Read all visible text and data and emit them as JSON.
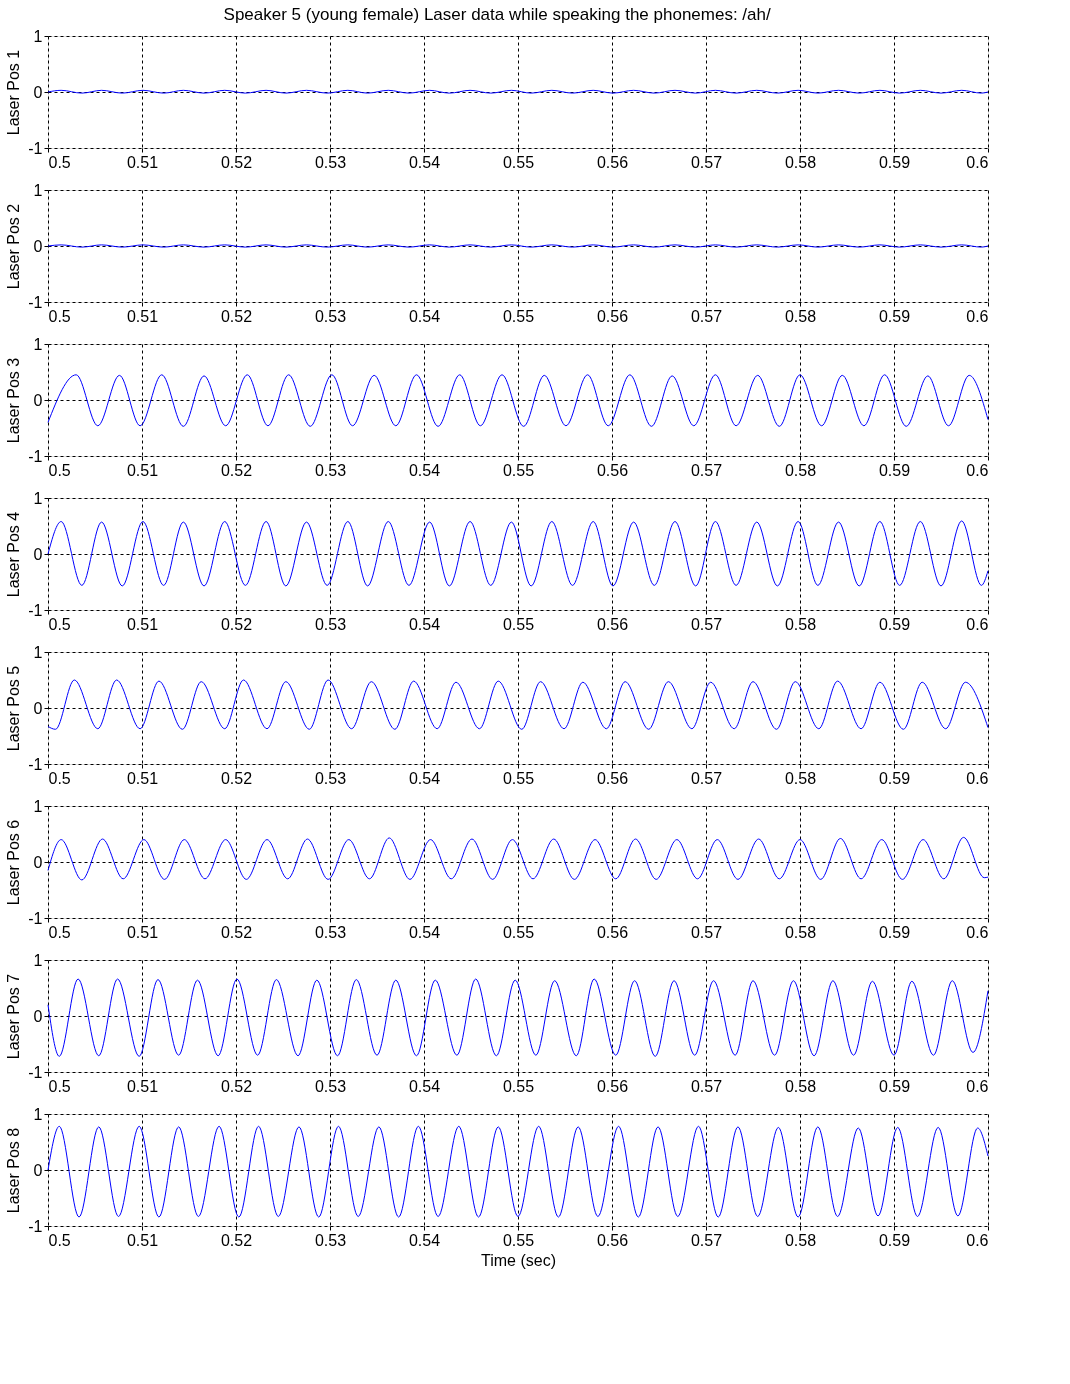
{
  "chart_data": [
    {
      "type": "line",
      "title": "Speaker 5 (young female) Laser data while speaking the phonemes:  /ah/",
      "ylabel": "Laser Pos 1",
      "xlim": [
        0.5,
        0.6
      ],
      "ylim": [
        -1,
        1
      ],
      "xticks": [
        0.5,
        0.51,
        0.52,
        0.53,
        0.54,
        0.55,
        0.56,
        0.57,
        0.58,
        0.59,
        0.6
      ],
      "yticks": [
        -1,
        0,
        1
      ],
      "grid": true,
      "line_style": "solid",
      "x": [
        0.5,
        0.5014,
        0.5036,
        0.5057,
        0.5079,
        0.5101,
        0.5123,
        0.5144,
        0.5166,
        0.5188,
        0.521,
        0.5232,
        0.5253,
        0.5275,
        0.5297,
        0.5319,
        0.534,
        0.5362,
        0.5384,
        0.5406,
        0.5427,
        0.5449,
        0.5471,
        0.5493,
        0.5514,
        0.5536,
        0.5558,
        0.558,
        0.5601,
        0.5623,
        0.5645,
        0.5667,
        0.5689,
        0.571,
        0.5732,
        0.5754,
        0.5776,
        0.5798,
        0.5819,
        0.5841,
        0.5863,
        0.5885,
        0.5906,
        0.5928,
        0.595,
        0.5972,
        0.5993,
        0.6
      ],
      "series": [
        {
          "color": "#0000ff",
          "values": [
            0.0,
            0.03,
            -0.02,
            0.03,
            -0.02,
            0.03,
            -0.02,
            0.03,
            -0.02,
            0.03,
            -0.02,
            0.03,
            -0.02,
            0.03,
            -0.02,
            0.03,
            -0.02,
            0.03,
            -0.02,
            0.03,
            -0.02,
            0.03,
            -0.02,
            0.03,
            -0.02,
            0.03,
            -0.02,
            0.03,
            -0.02,
            0.03,
            -0.02,
            0.03,
            -0.02,
            0.03,
            -0.02,
            0.03,
            -0.02,
            0.03,
            -0.02,
            0.03,
            -0.02,
            0.03,
            -0.02,
            0.03,
            -0.02,
            0.03,
            -0.02,
            0.0
          ]
        }
      ]
    },
    {
      "type": "line",
      "ylabel": "Laser Pos 2",
      "xlim": [
        0.5,
        0.6
      ],
      "ylim": [
        -1,
        1
      ],
      "xticks": [
        0.5,
        0.51,
        0.52,
        0.53,
        0.54,
        0.55,
        0.56,
        0.57,
        0.58,
        0.59,
        0.6
      ],
      "yticks": [
        -1,
        0,
        1
      ],
      "grid": true,
      "line_style": "solid",
      "x": [
        0.5,
        0.5014,
        0.5036,
        0.5057,
        0.5079,
        0.5101,
        0.5123,
        0.5144,
        0.5166,
        0.5188,
        0.521,
        0.5232,
        0.5253,
        0.5275,
        0.5297,
        0.5319,
        0.534,
        0.5362,
        0.5384,
        0.5406,
        0.5427,
        0.5449,
        0.5471,
        0.5493,
        0.5514,
        0.5536,
        0.5558,
        0.558,
        0.5601,
        0.5623,
        0.5645,
        0.5667,
        0.5689,
        0.571,
        0.5732,
        0.5754,
        0.5776,
        0.5798,
        0.5819,
        0.5841,
        0.5863,
        0.5885,
        0.5906,
        0.5928,
        0.595,
        0.5972,
        0.5993,
        0.6
      ],
      "series": [
        {
          "color": "#0000ff",
          "values": [
            0.0,
            0.02,
            -0.02,
            0.02,
            -0.02,
            0.02,
            -0.02,
            0.02,
            -0.02,
            0.02,
            -0.02,
            0.02,
            -0.02,
            0.02,
            -0.02,
            0.02,
            -0.02,
            0.02,
            -0.02,
            0.02,
            -0.02,
            0.02,
            -0.02,
            0.02,
            -0.02,
            0.02,
            -0.02,
            0.02,
            -0.02,
            0.02,
            -0.02,
            0.02,
            -0.02,
            0.02,
            -0.02,
            0.02,
            -0.02,
            0.02,
            -0.02,
            0.02,
            -0.02,
            0.02,
            -0.02,
            0.02,
            -0.02,
            0.02,
            -0.02,
            0.0
          ]
        }
      ]
    },
    {
      "type": "line",
      "ylabel": "Laser Pos 3",
      "xlim": [
        0.5,
        0.6
      ],
      "ylim": [
        -1,
        1
      ],
      "xticks": [
        0.5,
        0.51,
        0.52,
        0.53,
        0.54,
        0.55,
        0.56,
        0.57,
        0.58,
        0.59,
        0.6
      ],
      "yticks": [
        -1,
        0,
        1
      ],
      "grid": true,
      "line_style": "solid",
      "x": [
        0.5,
        0.503,
        0.5053,
        0.5076,
        0.5098,
        0.5121,
        0.5144,
        0.5166,
        0.5189,
        0.5212,
        0.5234,
        0.5256,
        0.5279,
        0.5302,
        0.5324,
        0.5347,
        0.537,
        0.5392,
        0.5415,
        0.5438,
        0.546,
        0.5483,
        0.5506,
        0.5528,
        0.5551,
        0.5574,
        0.5596,
        0.5619,
        0.5642,
        0.5664,
        0.5687,
        0.571,
        0.5732,
        0.5755,
        0.5778,
        0.58,
        0.5823,
        0.5845,
        0.5868,
        0.589,
        0.5913,
        0.5936,
        0.5958,
        0.598,
        0.6
      ],
      "series": [
        {
          "color": "#0000ff",
          "values": [
            -0.4,
            0.45,
            -0.46,
            0.44,
            -0.46,
            0.45,
            -0.47,
            0.43,
            -0.46,
            0.45,
            -0.46,
            0.45,
            -0.47,
            0.45,
            -0.46,
            0.44,
            -0.46,
            0.45,
            -0.47,
            0.45,
            -0.46,
            0.45,
            -0.47,
            0.44,
            -0.46,
            0.45,
            -0.46,
            0.45,
            -0.47,
            0.43,
            -0.46,
            0.45,
            -0.46,
            0.44,
            -0.47,
            0.45,
            -0.46,
            0.44,
            -0.46,
            0.45,
            -0.47,
            0.43,
            -0.46,
            0.44,
            -0.35
          ]
        }
      ]
    },
    {
      "type": "line",
      "ylabel": "Laser Pos 4",
      "xlim": [
        0.5,
        0.6
      ],
      "ylim": [
        -1,
        1
      ],
      "xticks": [
        0.5,
        0.51,
        0.52,
        0.53,
        0.54,
        0.55,
        0.56,
        0.57,
        0.58,
        0.59,
        0.6
      ],
      "yticks": [
        -1,
        0,
        1
      ],
      "grid": true,
      "line_style": "solid",
      "x": [
        0.5,
        0.5014,
        0.5036,
        0.5057,
        0.5079,
        0.5101,
        0.5123,
        0.5144,
        0.5166,
        0.5188,
        0.521,
        0.5232,
        0.5253,
        0.5275,
        0.5297,
        0.5319,
        0.534,
        0.5362,
        0.5384,
        0.5406,
        0.5427,
        0.5449,
        0.5471,
        0.5493,
        0.5514,
        0.5536,
        0.5558,
        0.558,
        0.5601,
        0.5623,
        0.5645,
        0.5667,
        0.5689,
        0.571,
        0.5732,
        0.5754,
        0.5776,
        0.5798,
        0.5819,
        0.5841,
        0.5863,
        0.5885,
        0.5906,
        0.5928,
        0.595,
        0.5972,
        0.5993,
        0.6
      ],
      "series": [
        {
          "color": "#0000ff",
          "values": [
            0.0,
            0.58,
            -0.56,
            0.57,
            -0.57,
            0.58,
            -0.56,
            0.57,
            -0.57,
            0.58,
            -0.56,
            0.58,
            -0.57,
            0.57,
            -0.56,
            0.58,
            -0.57,
            0.58,
            -0.56,
            0.57,
            -0.57,
            0.58,
            -0.56,
            0.57,
            -0.57,
            0.58,
            -0.56,
            0.58,
            -0.57,
            0.57,
            -0.56,
            0.58,
            -0.57,
            0.58,
            -0.56,
            0.57,
            -0.57,
            0.58,
            -0.56,
            0.57,
            -0.57,
            0.58,
            -0.56,
            0.58,
            -0.57,
            0.59,
            -0.56,
            -0.3
          ]
        }
      ]
    },
    {
      "type": "line",
      "ylabel": "Laser Pos 5",
      "xlim": [
        0.5,
        0.6
      ],
      "ylim": [
        -1,
        1
      ],
      "xticks": [
        0.5,
        0.51,
        0.52,
        0.53,
        0.54,
        0.55,
        0.56,
        0.57,
        0.58,
        0.59,
        0.6
      ],
      "yticks": [
        -1,
        0,
        1
      ],
      "grid": true,
      "line_style": "solid",
      "x": [
        0.5,
        0.5008,
        0.5028,
        0.5053,
        0.5073,
        0.5098,
        0.5118,
        0.5143,
        0.5163,
        0.5188,
        0.5208,
        0.5233,
        0.5253,
        0.5278,
        0.5298,
        0.5323,
        0.5344,
        0.5369,
        0.5389,
        0.5414,
        0.5434,
        0.5459,
        0.5479,
        0.5504,
        0.5524,
        0.5549,
        0.5569,
        0.5594,
        0.5614,
        0.5639,
        0.566,
        0.5685,
        0.5705,
        0.573,
        0.575,
        0.5775,
        0.5795,
        0.582,
        0.584,
        0.5865,
        0.5885,
        0.591,
        0.593,
        0.5955,
        0.5976,
        0.6
      ],
      "series": [
        {
          "color": "#0000ff",
          "values": [
            -0.33,
            -0.38,
            0.5,
            -0.37,
            0.5,
            -0.37,
            0.48,
            -0.38,
            0.47,
            -0.37,
            0.5,
            -0.37,
            0.47,
            -0.38,
            0.5,
            -0.37,
            0.47,
            -0.38,
            0.48,
            -0.37,
            0.46,
            -0.37,
            0.48,
            -0.38,
            0.47,
            -0.37,
            0.46,
            -0.37,
            0.47,
            -0.38,
            0.47,
            -0.37,
            0.46,
            -0.37,
            0.47,
            -0.38,
            0.47,
            -0.37,
            0.48,
            -0.37,
            0.46,
            -0.38,
            0.46,
            -0.37,
            0.46,
            -0.35
          ]
        }
      ]
    },
    {
      "type": "line",
      "ylabel": "Laser Pos 6",
      "xlim": [
        0.5,
        0.6
      ],
      "ylim": [
        -1,
        1
      ],
      "xticks": [
        0.5,
        0.51,
        0.52,
        0.53,
        0.54,
        0.55,
        0.56,
        0.57,
        0.58,
        0.59,
        0.6
      ],
      "yticks": [
        -1,
        0,
        1
      ],
      "grid": true,
      "line_style": "solid",
      "x": [
        0.5,
        0.5014,
        0.5036,
        0.5058,
        0.508,
        0.5102,
        0.5124,
        0.5145,
        0.5167,
        0.5189,
        0.5211,
        0.5233,
        0.5255,
        0.5276,
        0.5298,
        0.532,
        0.5342,
        0.5363,
        0.5385,
        0.5407,
        0.5429,
        0.5451,
        0.5473,
        0.5494,
        0.5516,
        0.5538,
        0.556,
        0.5582,
        0.5604,
        0.5625,
        0.5647,
        0.5669,
        0.5691,
        0.5712,
        0.5734,
        0.5756,
        0.5778,
        0.58,
        0.5822,
        0.5843,
        0.5865,
        0.5887,
        0.5909,
        0.5931,
        0.5953,
        0.5974,
        0.5996,
        0.6
      ],
      "series": [
        {
          "color": "#0000ff",
          "values": [
            -0.15,
            0.4,
            -0.32,
            0.41,
            -0.3,
            0.4,
            -0.31,
            0.4,
            -0.3,
            0.4,
            -0.31,
            0.4,
            -0.3,
            0.41,
            -0.31,
            0.4,
            -0.3,
            0.43,
            -0.31,
            0.4,
            -0.3,
            0.41,
            -0.31,
            0.4,
            -0.3,
            0.41,
            -0.31,
            0.4,
            -0.3,
            0.41,
            -0.31,
            0.4,
            -0.3,
            0.4,
            -0.31,
            0.41,
            -0.3,
            0.4,
            -0.31,
            0.42,
            -0.3,
            0.4,
            -0.31,
            0.4,
            -0.3,
            0.44,
            -0.28,
            -0.27
          ]
        }
      ]
    },
    {
      "type": "line",
      "ylabel": "Laser Pos 7",
      "xlim": [
        0.5,
        0.6
      ],
      "ylim": [
        -1,
        1
      ],
      "xticks": [
        0.5,
        0.51,
        0.52,
        0.53,
        0.54,
        0.55,
        0.56,
        0.57,
        0.58,
        0.59,
        0.6
      ],
      "yticks": [
        -1,
        0,
        1
      ],
      "grid": true,
      "line_style": "solid",
      "x": [
        0.5,
        0.5012,
        0.5032,
        0.5054,
        0.5074,
        0.5097,
        0.5117,
        0.5139,
        0.5159,
        0.5181,
        0.5201,
        0.5223,
        0.5243,
        0.5266,
        0.5286,
        0.5308,
        0.5328,
        0.535,
        0.537,
        0.5392,
        0.5412,
        0.5435,
        0.5455,
        0.5477,
        0.5497,
        0.5519,
        0.5539,
        0.5562,
        0.5581,
        0.5604,
        0.5624,
        0.5646,
        0.5666,
        0.5688,
        0.5708,
        0.5731,
        0.575,
        0.5773,
        0.5793,
        0.5815,
        0.5835,
        0.5857,
        0.5877,
        0.59,
        0.5919,
        0.5942,
        0.5962,
        0.5984,
        0.6
      ],
      "series": [
        {
          "color": "#0000ff",
          "values": [
            0.2,
            -0.72,
            0.66,
            -0.71,
            0.66,
            -0.72,
            0.65,
            -0.7,
            0.64,
            -0.71,
            0.66,
            -0.7,
            0.65,
            -0.71,
            0.64,
            -0.71,
            0.65,
            -0.7,
            0.64,
            -0.71,
            0.64,
            -0.7,
            0.66,
            -0.71,
            0.64,
            -0.7,
            0.63,
            -0.71,
            0.66,
            -0.7,
            0.63,
            -0.72,
            0.63,
            -0.7,
            0.63,
            -0.7,
            0.63,
            -0.7,
            0.63,
            -0.71,
            0.63,
            -0.7,
            0.62,
            -0.7,
            0.62,
            -0.7,
            0.63,
            -0.65,
            0.45
          ]
        }
      ]
    },
    {
      "type": "line",
      "ylabel": "Laser Pos 8",
      "xlabel": "Time (sec)",
      "xlim": [
        0.5,
        0.6
      ],
      "ylim": [
        -1,
        1
      ],
      "xticks": [
        0.5,
        0.51,
        0.52,
        0.53,
        0.54,
        0.55,
        0.56,
        0.57,
        0.58,
        0.59,
        0.6
      ],
      "yticks": [
        -1,
        0,
        1
      ],
      "grid": true,
      "line_style": "solid",
      "x": [
        0.5,
        0.5012,
        0.5033,
        0.5054,
        0.5075,
        0.5097,
        0.5118,
        0.5139,
        0.516,
        0.5182,
        0.5203,
        0.5224,
        0.5245,
        0.5267,
        0.5288,
        0.5309,
        0.533,
        0.5352,
        0.5373,
        0.5394,
        0.5415,
        0.5437,
        0.5458,
        0.5479,
        0.55,
        0.5522,
        0.5543,
        0.5564,
        0.5585,
        0.5607,
        0.5628,
        0.5649,
        0.567,
        0.5692,
        0.5713,
        0.5734,
        0.5755,
        0.5777,
        0.5798,
        0.5819,
        0.584,
        0.5862,
        0.5883,
        0.5904,
        0.5925,
        0.5947,
        0.5968,
        0.5989,
        0.6
      ],
      "series": [
        {
          "color": "#0000ff",
          "values": [
            0.0,
            0.78,
            -0.84,
            0.77,
            -0.83,
            0.78,
            -0.84,
            0.77,
            -0.83,
            0.78,
            -0.84,
            0.78,
            -0.83,
            0.77,
            -0.84,
            0.78,
            -0.83,
            0.77,
            -0.84,
            0.78,
            -0.83,
            0.78,
            -0.84,
            0.77,
            -0.83,
            0.78,
            -0.84,
            0.77,
            -0.83,
            0.78,
            -0.84,
            0.77,
            -0.83,
            0.78,
            -0.84,
            0.77,
            -0.83,
            0.76,
            -0.84,
            0.77,
            -0.83,
            0.75,
            -0.82,
            0.76,
            -0.83,
            0.76,
            -0.82,
            0.75,
            0.25
          ]
        }
      ]
    }
  ]
}
